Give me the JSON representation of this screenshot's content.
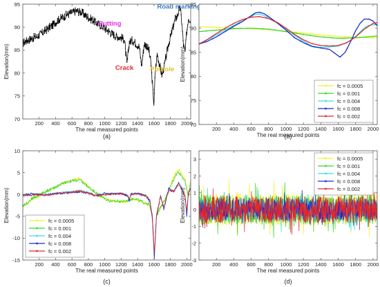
{
  "chart_data": [
    {
      "type": "line",
      "panel_label": "(a)",
      "xlabel": "The real measured points",
      "ylabel": "Elevation(mm)",
      "xlim": [
        0,
        2048
      ],
      "ylim": [
        70,
        95
      ],
      "xticks": [
        200,
        400,
        600,
        800,
        1000,
        1200,
        1400,
        1600,
        1800,
        2000
      ],
      "yticks": [
        70,
        75,
        80,
        85,
        90,
        95
      ],
      "grid": false,
      "series": [
        {
          "color": "#000000",
          "marker": "dot",
          "x": [
            0,
            60,
            120,
            180,
            240,
            300,
            360,
            420,
            480,
            540,
            600,
            660,
            720,
            780,
            840,
            900,
            960,
            1020,
            1080,
            1140,
            1200,
            1240,
            1270,
            1300,
            1340,
            1380,
            1420,
            1450,
            1480,
            1510,
            1540,
            1565,
            1585,
            1600,
            1615,
            1640,
            1670,
            1700,
            1740,
            1780,
            1810,
            1840,
            1860,
            1880,
            1900,
            1920,
            1940,
            1960,
            1980,
            2000,
            2020,
            2048
          ],
          "y": [
            86.5,
            87.2,
            87.6,
            88.0,
            88.8,
            89.6,
            90.4,
            91.4,
            92.1,
            92.7,
            93.2,
            93.5,
            93.2,
            92.3,
            91.7,
            90.9,
            90.3,
            89.5,
            88.7,
            88.0,
            87.7,
            87.3,
            81.8,
            86.8,
            87.1,
            86.5,
            85.8,
            81.5,
            86.3,
            86.0,
            84.8,
            81.8,
            76.5,
            73.2,
            80.2,
            84.3,
            81.5,
            79.5,
            82.8,
            86.5,
            88.3,
            90.5,
            91.8,
            92.2,
            93.3,
            94.2,
            91.0,
            86.0,
            84.5,
            89.0,
            92.0,
            91.5
          ]
        }
      ],
      "annotations": [
        {
          "text": "Road marking",
          "x": 1905,
          "y": 94.0,
          "color": "#3a80c8"
        },
        {
          "text": "Rutting",
          "x": 1060,
          "y": 90.3,
          "color": "#e52ae0"
        },
        {
          "text": "Crack",
          "x": 1240,
          "y": 80.7,
          "color": "#e8262b"
        },
        {
          "text": "Pothole",
          "x": 1700,
          "y": 80.4,
          "color": "#e3c12a"
        }
      ]
    },
    {
      "type": "line",
      "panel_label": "(b)",
      "xlabel": "The real measured points",
      "ylabel": "Elevation(mm)",
      "xlim": [
        0,
        2048
      ],
      "ylim": [
        70,
        95
      ],
      "xticks": [
        200,
        400,
        600,
        800,
        1000,
        1200,
        1400,
        1600,
        1800,
        2000
      ],
      "yticks": [
        70,
        75,
        80,
        85,
        90,
        95
      ],
      "grid": false,
      "legend_position": "bottom-right",
      "series": [
        {
          "name": "fc = 0.0005",
          "color": "#f3f12a",
          "x": [
            0,
            200,
            400,
            600,
            800,
            1000,
            1200,
            1400,
            1600,
            1800,
            2000,
            2048
          ],
          "y": [
            90.3,
            90.2,
            90.0,
            89.9,
            89.7,
            89.4,
            89.0,
            88.6,
            88.3,
            88.1,
            88.0,
            88.0
          ]
        },
        {
          "name": "fc = 0.001",
          "color": "#3bd629",
          "x": [
            0,
            200,
            400,
            600,
            800,
            1000,
            1200,
            1400,
            1600,
            1800,
            2000,
            2048
          ],
          "y": [
            89.3,
            89.6,
            89.9,
            90.0,
            89.8,
            89.3,
            88.7,
            88.2,
            87.9,
            88.0,
            88.3,
            88.4
          ]
        },
        {
          "name": "fc = 0.004",
          "color": "#37dfe4",
          "x": [
            0,
            100,
            200,
            300,
            400,
            500,
            600,
            650,
            700,
            750,
            800,
            900,
            1000,
            1100,
            1200,
            1300,
            1400,
            1500,
            1600,
            1700,
            1800,
            1900,
            1950,
            2000,
            2048
          ],
          "y": [
            86.8,
            87.6,
            88.6,
            89.6,
            90.6,
            91.5,
            92.5,
            92.9,
            92.9,
            92.6,
            92.1,
            91.0,
            89.9,
            88.5,
            87.3,
            86.3,
            86.0,
            86.1,
            86.3,
            87.0,
            88.3,
            90.1,
            90.6,
            90.7,
            90.8
          ]
        },
        {
          "name": "fc = 0.008",
          "color": "#1b2bd3",
          "x": [
            0,
            100,
            200,
            300,
            400,
            500,
            600,
            650,
            700,
            750,
            800,
            900,
            1000,
            1100,
            1200,
            1300,
            1400,
            1500,
            1560,
            1620,
            1680,
            1750,
            1800,
            1850,
            1900,
            1950,
            2000,
            2048
          ],
          "y": [
            86.7,
            87.3,
            88.2,
            89.3,
            90.4,
            91.4,
            92.6,
            93.2,
            93.3,
            93.0,
            92.4,
            91.1,
            89.6,
            88.0,
            87.0,
            86.2,
            85.9,
            85.6,
            84.8,
            84.0,
            85.0,
            87.5,
            89.5,
            91.0,
            91.9,
            91.9,
            91.5,
            90.5
          ]
        },
        {
          "name": "fc = 0.002",
          "color": "#e42828",
          "x": [
            0,
            100,
            200,
            300,
            400,
            500,
            600,
            700,
            800,
            900,
            1000,
            1100,
            1200,
            1300,
            1400,
            1500,
            1600,
            1700,
            1800,
            1900,
            2000,
            2048
          ],
          "y": [
            86.7,
            87.7,
            88.9,
            90.0,
            91.0,
            91.8,
            92.3,
            92.4,
            92.0,
            91.2,
            90.0,
            88.7,
            87.6,
            86.8,
            86.4,
            86.3,
            86.4,
            87.0,
            88.2,
            89.8,
            91.0,
            91.2
          ]
        }
      ]
    },
    {
      "type": "line",
      "panel_label": "(c)",
      "xlabel": "The real measured points",
      "ylabel": "Elevation(mm)",
      "xlim": [
        0,
        2048
      ],
      "ylim": [
        -15,
        10
      ],
      "xticks": [
        200,
        400,
        600,
        800,
        1000,
        1200,
        1400,
        1600,
        1800,
        2000
      ],
      "yticks": [
        -15,
        -10,
        -5,
        0,
        5,
        10
      ],
      "grid": false,
      "legend_position": "bottom-left",
      "series": [
        {
          "name": "fc = 0.0005",
          "color": "#f3f12a",
          "x": [
            0,
            60,
            120,
            180,
            240,
            300,
            360,
            420,
            480,
            540,
            600,
            660,
            700,
            760,
            820,
            880,
            940,
            1000,
            1060,
            1120,
            1180,
            1240,
            1300,
            1360,
            1420,
            1480,
            1540,
            1580,
            1605,
            1630,
            1680,
            1740,
            1800,
            1860,
            1900,
            1940,
            1980,
            2020,
            2048
          ],
          "y": [
            -2.8,
            -2.0,
            -1.0,
            -0.6,
            0.2,
            0.8,
            1.2,
            1.8,
            2.4,
            2.9,
            3.3,
            3.5,
            3.7,
            2.5,
            1.5,
            0.8,
            -0.3,
            -0.8,
            -1.3,
            -1.5,
            -1.6,
            -1.8,
            -1.3,
            -1.0,
            -1.5,
            -2.0,
            -2.3,
            -5.0,
            -14.2,
            -5.0,
            -3.2,
            -1.0,
            2.0,
            4.8,
            5.8,
            4.8,
            3.4,
            -0.8,
            3.5
          ]
        },
        {
          "name": "fc = 0.001",
          "color": "#3bd629",
          "x": [
            0,
            60,
            120,
            180,
            240,
            300,
            360,
            420,
            480,
            540,
            600,
            660,
            700,
            760,
            820,
            880,
            940,
            1000,
            1060,
            1120,
            1180,
            1240,
            1300,
            1360,
            1420,
            1480,
            1540,
            1580,
            1605,
            1630,
            1680,
            1740,
            1800,
            1860,
            1900,
            1940,
            1980,
            2020,
            2048
          ],
          "y": [
            -2.6,
            -1.8,
            -0.8,
            -0.4,
            0.3,
            0.9,
            1.3,
            1.9,
            2.5,
            2.9,
            3.1,
            3.2,
            3.3,
            2.3,
            1.4,
            0.6,
            -0.4,
            -0.9,
            -1.5,
            -1.6,
            -1.5,
            -1.6,
            -1.2,
            -0.9,
            -1.4,
            -1.9,
            -2.1,
            -4.8,
            -13.9,
            -4.8,
            -3.0,
            -0.9,
            1.7,
            4.3,
            5.2,
            4.2,
            3.0,
            -0.6,
            3.0
          ]
        },
        {
          "name": "fc = 0.004",
          "color": "#37dfe4",
          "x": [
            0,
            100,
            200,
            300,
            400,
            500,
            600,
            700,
            800,
            900,
            1000,
            1100,
            1200,
            1280,
            1300,
            1320,
            1400,
            1450,
            1500,
            1550,
            1580,
            1605,
            1630,
            1680,
            1720,
            1780,
            1840,
            1900,
            1940,
            1980,
            2000,
            2020,
            2048
          ],
          "y": [
            -0.2,
            0.0,
            0.1,
            -0.1,
            0.3,
            0.4,
            0.6,
            0.9,
            0.4,
            -0.2,
            0.1,
            0.2,
            0.3,
            -0.2,
            -1.2,
            0.1,
            0.3,
            0.0,
            -0.2,
            -1.4,
            -5.2,
            -14.0,
            -5.0,
            -0.5,
            -3.1,
            1.2,
            0.8,
            2.8,
            1.5,
            -0.3,
            -4.5,
            0.5,
            1.0
          ]
        },
        {
          "name": "fc = 0.008",
          "color": "#1b2bd3",
          "x": [
            0,
            100,
            200,
            300,
            400,
            500,
            600,
            700,
            800,
            900,
            1000,
            1100,
            1200,
            1280,
            1300,
            1320,
            1400,
            1450,
            1500,
            1550,
            1580,
            1605,
            1630,
            1680,
            1720,
            1780,
            1840,
            1900,
            1940,
            1980,
            2000,
            2020,
            2048
          ],
          "y": [
            -0.1,
            0.1,
            0.0,
            0.0,
            0.2,
            0.3,
            0.5,
            0.6,
            0.3,
            -0.2,
            0.2,
            0.1,
            0.2,
            -0.3,
            -1.4,
            0.2,
            0.2,
            0.0,
            -0.3,
            -1.6,
            -5.6,
            -14.6,
            -5.4,
            -0.3,
            -3.4,
            1.4,
            0.6,
            2.6,
            1.2,
            -0.5,
            -5.0,
            0.6,
            1.2
          ]
        },
        {
          "name": "fc = 0.002",
          "color": "#e42828",
          "x": [
            0,
            100,
            200,
            300,
            400,
            500,
            600,
            700,
            800,
            900,
            1000,
            1100,
            1200,
            1280,
            1300,
            1320,
            1400,
            1450,
            1500,
            1550,
            1580,
            1605,
            1630,
            1680,
            1720,
            1780,
            1840,
            1900,
            1940,
            1980,
            2000,
            2020,
            2048
          ],
          "y": [
            -0.3,
            -0.1,
            0.0,
            -0.2,
            0.2,
            0.3,
            0.6,
            0.8,
            0.2,
            -0.3,
            0.0,
            0.1,
            0.2,
            -0.3,
            -1.0,
            0.0,
            0.2,
            -0.1,
            -0.3,
            -1.2,
            -4.8,
            -13.5,
            -4.8,
            -0.4,
            -2.8,
            1.0,
            0.7,
            2.4,
            1.3,
            -0.4,
            -4.0,
            0.4,
            1.4
          ]
        }
      ]
    },
    {
      "type": "line",
      "panel_label": "(d)",
      "xlabel": "The real measured points",
      "ylabel": "Elevation(mm)",
      "xlim": [
        0,
        2048
      ],
      "ylim": [
        -3,
        3.5
      ],
      "xticks": [
        200,
        400,
        600,
        800,
        1000,
        1200,
        1400,
        1600,
        1800,
        2000
      ],
      "yticks": [
        -3,
        -2,
        -1,
        0,
        1,
        2,
        3
      ],
      "grid": false,
      "legend_position": "top-right",
      "noise_series": true,
      "series": [
        {
          "name": "fc = 0.0005",
          "color": "#f3f12a",
          "amplitude": 1.2
        },
        {
          "name": "fc = 0.001",
          "color": "#3bd629",
          "amplitude": 1.1
        },
        {
          "name": "fc = 0.004",
          "color": "#37dfe4",
          "amplitude": 0.9
        },
        {
          "name": "fc = 0.008",
          "color": "#1b2bd3",
          "amplitude": 0.8
        },
        {
          "name": "fc = 0.002",
          "color": "#e42828",
          "amplitude": 1.0
        }
      ]
    }
  ]
}
